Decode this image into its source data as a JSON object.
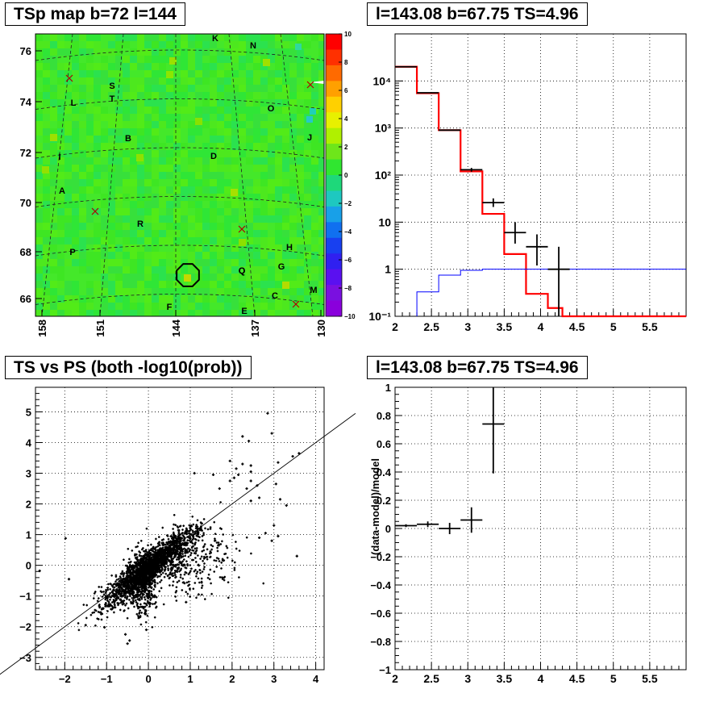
{
  "panels": {
    "tl_title": "TSp map b=72 l=144",
    "tr_title": "l=143.08 b=67.75 TS=4.96",
    "bl_title": "TS vs PS (both -log10(prob))",
    "br_title": "l=143.08 b=67.75 TS=4.96"
  },
  "chart_data": [
    {
      "type": "heatmap",
      "title": "TSp map b=72 l=144",
      "x_ticks": [
        "158",
        "151",
        "144",
        "137",
        "130"
      ],
      "y_ticks": [
        "76",
        "74",
        "72",
        "70",
        "68",
        "66"
      ],
      "colorbar": {
        "min": -10,
        "max": 10,
        "ticks": [
          "10",
          "8",
          "6",
          "4",
          "2",
          "0",
          "−2",
          "−4",
          "−6",
          "−8",
          "−10"
        ]
      },
      "source_labels": [
        "K",
        "N",
        "S",
        "T",
        "L",
        "O",
        "B",
        "J",
        "D",
        "I",
        "A",
        "R",
        "Q",
        "H",
        "P",
        "G",
        "Q",
        "C",
        "M",
        "F",
        "E"
      ],
      "circle_marker": "selected source near l=143, b=67"
    },
    {
      "type": "line",
      "title": "l=143.08 b=67.75 TS=4.96",
      "yscale": "log",
      "xlim": [
        2,
        6
      ],
      "ylim": [
        0.1,
        100000
      ],
      "x_ticks": [
        "2",
        "2.5",
        "3",
        "3.5",
        "4",
        "4.5",
        "5",
        "5.5"
      ],
      "y_ticks": [
        "10⁻¹",
        "1",
        "10",
        "10²",
        "10³",
        "10⁴"
      ],
      "grid": true,
      "series": [
        {
          "color": "#ff0000",
          "style": "step",
          "bins": [
            [
              2.0,
              2.3,
              20000
            ],
            [
              2.3,
              2.6,
              5500
            ],
            [
              2.6,
              2.9,
              900
            ],
            [
              2.9,
              3.2,
              120
            ],
            [
              3.2,
              3.5,
              15
            ],
            [
              3.5,
              3.8,
              2.1
            ],
            [
              3.8,
              4.1,
              0.3
            ],
            [
              4.1,
              4.3,
              0.15
            ],
            [
              4.3,
              6.0,
              0.1
            ]
          ]
        },
        {
          "color": "#0000ff",
          "style": "step",
          "bins": [
            [
              2.3,
              2.6,
              0.33
            ],
            [
              2.6,
              2.9,
              0.75
            ],
            [
              2.9,
              3.2,
              0.95
            ],
            [
              3.2,
              6.0,
              1.0
            ]
          ]
        },
        {
          "color": "#000000",
          "style": "errorbars",
          "points": [
            {
              "x": 2.15,
              "xerr": 0.15,
              "y": 20000,
              "ylo": 20000,
              "yhi": 20000
            },
            {
              "x": 2.45,
              "xerr": 0.15,
              "y": 5600,
              "ylo": 5600,
              "yhi": 5600
            },
            {
              "x": 2.75,
              "xerr": 0.15,
              "y": 900,
              "ylo": 900,
              "yhi": 900
            },
            {
              "x": 3.05,
              "xerr": 0.15,
              "y": 130,
              "ylo": 118,
              "yhi": 142
            },
            {
              "x": 3.35,
              "xerr": 0.15,
              "y": 26,
              "ylo": 21,
              "yhi": 32
            },
            {
              "x": 3.65,
              "xerr": 0.15,
              "y": 6,
              "ylo": 3.5,
              "yhi": 10
            },
            {
              "x": 3.95,
              "xerr": 0.15,
              "y": 3,
              "ylo": 1.2,
              "yhi": 5.5
            },
            {
              "x": 4.25,
              "xerr": 0.15,
              "y": 1,
              "ylo": 0.1,
              "yhi": 3
            }
          ]
        }
      ]
    },
    {
      "type": "scatter",
      "title": "TS vs PS (both -log10(prob))",
      "xlim": [
        -2.7,
        4.2
      ],
      "ylim": [
        -3.4,
        5.8
      ],
      "x_ticks": [
        "−2",
        "−1",
        "0",
        "1",
        "2",
        "3",
        "4"
      ],
      "y_ticks": [
        "−3",
        "−2",
        "−1",
        "0",
        "1",
        "2",
        "3",
        "4",
        "5"
      ],
      "grid": true,
      "reference_line": {
        "slope": 1,
        "intercept": 0
      },
      "points": [
        [
          2.85,
          4.95
        ],
        [
          2.95,
          4.3
        ],
        [
          2.25,
          4.2
        ],
        [
          2.4,
          4.05
        ],
        [
          3.45,
          3.55
        ],
        [
          3.6,
          3.65
        ],
        [
          3.1,
          3.35
        ],
        [
          1.95,
          3.4
        ],
        [
          2.25,
          3.3
        ],
        [
          2.45,
          3.25
        ],
        [
          2.1,
          3.15
        ],
        [
          2.45,
          3.05
        ],
        [
          1.1,
          3.0
        ],
        [
          1.55,
          2.95
        ],
        [
          2.05,
          2.85
        ],
        [
          2.15,
          2.95
        ],
        [
          1.95,
          2.75
        ],
        [
          2.6,
          2.6
        ],
        [
          3.05,
          2.65
        ],
        [
          2.45,
          2.75
        ],
        [
          1.7,
          2.5
        ],
        [
          2.35,
          2.5
        ],
        [
          3.15,
          2.15
        ],
        [
          3.3,
          1.95
        ],
        [
          2.45,
          2.1
        ],
        [
          2.65,
          2.2
        ],
        [
          3.0,
          1.3
        ],
        [
          3.1,
          0.95
        ],
        [
          2.8,
          1.05
        ],
        [
          2.65,
          0.9
        ],
        [
          2.95,
          0.8
        ],
        [
          3.55,
          0.3
        ],
        [
          -1.98,
          0.88
        ],
        [
          -2.6,
          -0.18
        ],
        [
          -1.9,
          -0.45
        ],
        [
          -1.5,
          -1.95
        ],
        [
          -1.05,
          -2.02
        ],
        [
          -0.55,
          -2.25
        ],
        [
          -0.5,
          -2.55
        ],
        [
          -0.45,
          -2.45
        ],
        [
          -0.05,
          -2.1
        ],
        [
          1.2,
          -0.95
        ],
        [
          0.9,
          -1.2
        ]
      ],
      "cloud": {
        "count": 2600,
        "center": [
          0.0,
          -0.1
        ]
      }
    },
    {
      "type": "scatter",
      "title": "l=143.08 b=67.75 TS=4.96",
      "ylabel": "(data-model)/model",
      "xlim": [
        2,
        6
      ],
      "ylim": [
        -1,
        1
      ],
      "x_ticks": [
        "2",
        "2.5",
        "3",
        "3.5",
        "4",
        "4.5",
        "5",
        "5.5"
      ],
      "y_ticks": [
        "1",
        "0.8",
        "0.6",
        "0.4",
        "0.2",
        "0",
        "−0.2",
        "−0.4",
        "−0.6",
        "−0.8",
        "−1"
      ],
      "grid": true,
      "points": [
        {
          "x": 2.15,
          "xerr": 0.15,
          "y": 0.02,
          "yerr": 0.01
        },
        {
          "x": 2.45,
          "xerr": 0.15,
          "y": 0.03,
          "yerr": 0.02
        },
        {
          "x": 2.75,
          "xerr": 0.15,
          "y": 0.0,
          "yerr": 0.04
        },
        {
          "x": 3.05,
          "xerr": 0.15,
          "y": 0.06,
          "yerr": 0.09
        },
        {
          "x": 3.35,
          "xerr": 0.15,
          "y": 0.74,
          "yerr": 0.35
        }
      ]
    }
  ]
}
